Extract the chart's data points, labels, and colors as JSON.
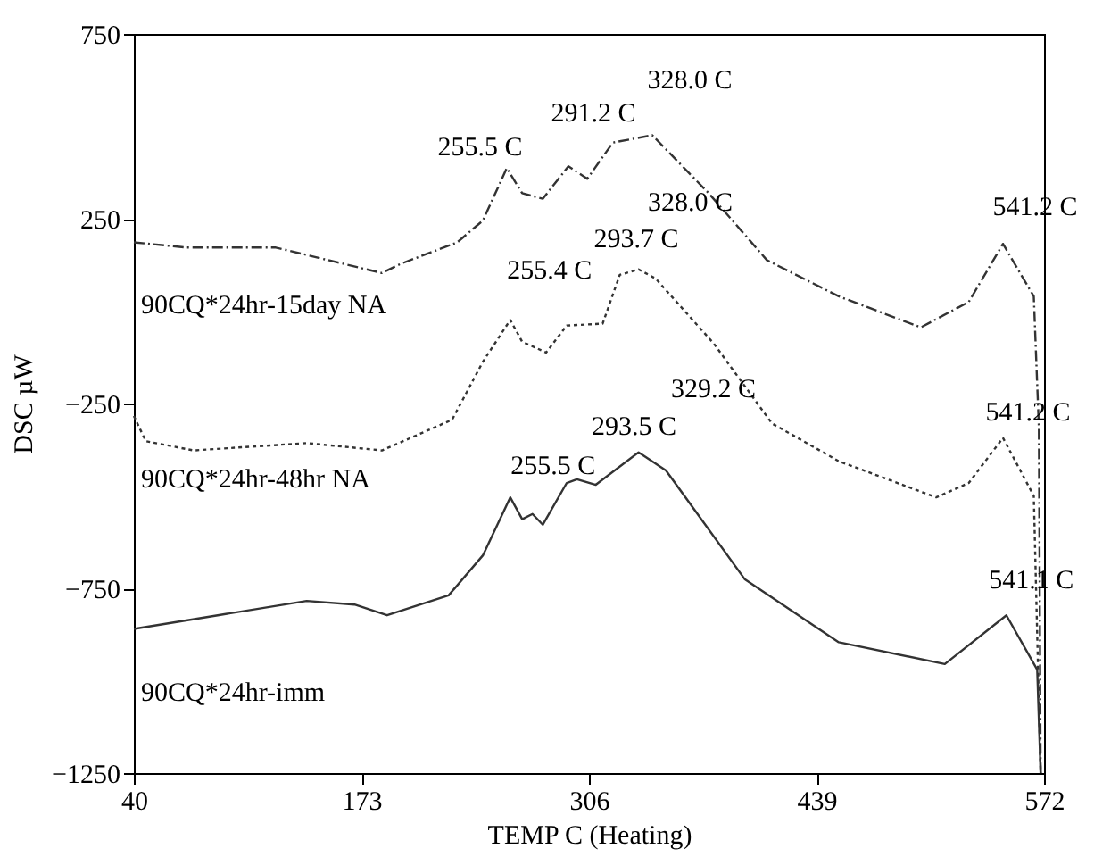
{
  "chart_data": {
    "type": "line",
    "xlabel": "TEMP C (Heating)",
    "ylabel": "DSC µW",
    "xlim": [
      40,
      572
    ],
    "xticks": [
      40,
      173,
      306,
      439,
      572
    ],
    "ylim": [
      -1250,
      750
    ],
    "yticks": [
      {
        "value": -1250,
        "label": "−1250"
      },
      {
        "value": -750,
        "label": "−750"
      },
      {
        "value": -250,
        "label": "−250"
      },
      250,
      750
    ],
    "grid": false,
    "marker": "none",
    "series": [
      {
        "name": "90CQ*24hr-15day NA",
        "color": "#333333",
        "line_style": "dashed",
        "x": [
          40,
          71,
          123,
          185,
          196,
          229,
          244,
          258,
          267,
          279,
          294,
          305,
          320,
          343,
          376,
          410,
          452,
          500,
          528,
          548,
          566,
          569,
          570
        ],
        "values": [
          186,
          172,
          172,
          103,
          128,
          186,
          245,
          387,
          319,
          304,
          392,
          358,
          456,
          476,
          319,
          138,
          40,
          -44,
          25,
          182,
          40,
          -318,
          -1250
        ]
      },
      {
        "name": "90CQ*24hr-48hr NA",
        "color": "#333333",
        "line_style": "dotted",
        "x": [
          40,
          47,
          75,
          141,
          185,
          226,
          244,
          260,
          267,
          281,
          293,
          314,
          324,
          335,
          345,
          379,
          413,
          452,
          509,
          528,
          548,
          566,
          570
        ],
        "values": [
          -284,
          -352,
          -377,
          -357,
          -377,
          -294,
          -137,
          -24,
          -83,
          -112,
          -39,
          -34,
          98,
          113,
          88,
          -88,
          -304,
          -406,
          -504,
          -465,
          -343,
          -500,
          -1250
        ]
      },
      {
        "name": "90CQ*24hr-imm",
        "color": "#333333",
        "line_style": "solid",
        "x": [
          40,
          89,
          141,
          169,
          188,
          224,
          244,
          260,
          267,
          273,
          279,
          293,
          299,
          310,
          335,
          351,
          397,
          452,
          514,
          550,
          568,
          570
        ],
        "values": [
          -860,
          -823,
          -784,
          -794,
          -823,
          -769,
          -661,
          -504,
          -563,
          -549,
          -578,
          -465,
          -455,
          -470,
          -382,
          -431,
          -725,
          -896,
          -955,
          -823,
          -970,
          -1250
        ]
      }
    ],
    "annotations": [
      {
        "text": "255.5 C",
        "x": 258,
        "y": 387
      },
      {
        "text": "291.2 C",
        "x": 294,
        "y": 392
      },
      {
        "text": "328.0 C",
        "x": 343,
        "y": 476
      },
      {
        "text": "328.0 C",
        "x": 335,
        "y": 113
      },
      {
        "text": "293.7 C",
        "x": 293,
        "y": -39
      },
      {
        "text": "255.4 C",
        "x": 260,
        "y": -24
      },
      {
        "text": "541.2 C",
        "x": 548,
        "y": 182
      },
      {
        "text": "541.2 C",
        "x": 548,
        "y": -343
      },
      {
        "text": "329.2 C",
        "x": 335,
        "y": -382
      },
      {
        "text": "293.5 C",
        "x": 299,
        "y": -455
      },
      {
        "text": "255.5 C",
        "x": 260,
        "y": -504
      },
      {
        "text": "541.1 C",
        "x": 550,
        "y": -823
      }
    ]
  }
}
